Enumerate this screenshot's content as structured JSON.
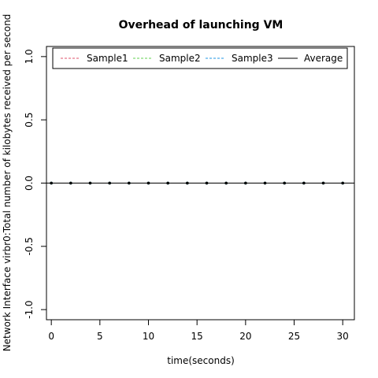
{
  "chart_data": {
    "type": "line",
    "title": "Overhead of launching VM",
    "xlabel": "time(seconds)",
    "ylabel": "Network Interface virbr0:Total number of kilobytes received per second",
    "xlim": [
      -0.5,
      31.2
    ],
    "ylim": [
      -1.08,
      1.08
    ],
    "x_ticks": [
      0,
      5,
      10,
      15,
      20,
      25,
      30
    ],
    "y_ticks": [
      -1.0,
      -0.5,
      0.0,
      0.5,
      1.0
    ],
    "x_tick_labels": [
      "0",
      "5",
      "10",
      "15",
      "20",
      "25",
      "30"
    ],
    "y_tick_labels": [
      "-1.0",
      "-0.5",
      "0.0",
      "0.5",
      "1.0"
    ],
    "x": [
      0,
      2,
      4,
      6,
      8,
      10,
      12,
      14,
      16,
      18,
      20,
      22,
      24,
      26,
      28,
      30
    ],
    "series": [
      {
        "name": "Sample1",
        "color": "#DF536B",
        "dash": "dashed",
        "values": [
          0,
          0,
          0,
          0,
          0,
          0,
          0,
          0,
          0,
          0,
          0,
          0,
          0,
          0,
          0,
          0
        ]
      },
      {
        "name": "Sample2",
        "color": "#61D04F",
        "dash": "dashed",
        "values": [
          0,
          0,
          0,
          0,
          0,
          0,
          0,
          0,
          0,
          0,
          0,
          0,
          0,
          0,
          0,
          0
        ]
      },
      {
        "name": "Sample3",
        "color": "#2297E6",
        "dash": "dashed",
        "values": [
          0,
          0,
          0,
          0,
          0,
          0,
          0,
          0,
          0,
          0,
          0,
          0,
          0,
          0,
          0,
          0
        ]
      },
      {
        "name": "Average",
        "color": "#000000",
        "dash": "solid",
        "values": [
          0,
          0,
          0,
          0,
          0,
          0,
          0,
          0,
          0,
          0,
          0,
          0,
          0,
          0,
          0,
          0
        ]
      }
    ],
    "legend_position": "top",
    "grid": false
  }
}
